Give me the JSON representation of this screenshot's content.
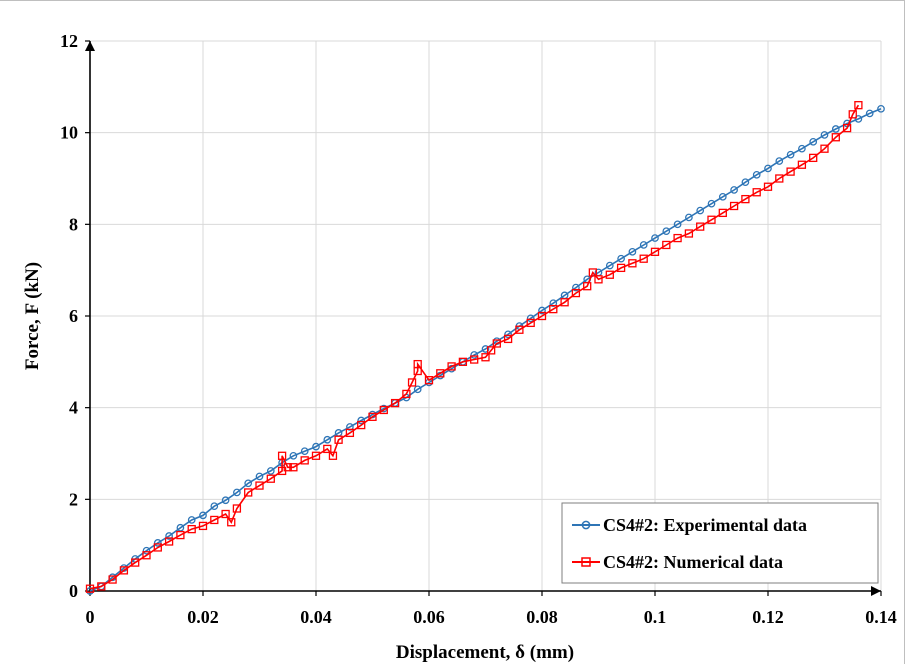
{
  "chart_data": {
    "type": "scatter",
    "xlabel": "Displacement, δ (mm)",
    "ylabel": "Force, F (kN)",
    "xlim": [
      0,
      0.14
    ],
    "ylim": [
      0,
      12
    ],
    "x_ticks": [
      "0",
      "0.02",
      "0.04",
      "0.06",
      "0.08",
      "0.1",
      "0.12",
      "0.14"
    ],
    "y_ticks": [
      "0",
      "2",
      "4",
      "6",
      "8",
      "10",
      "12"
    ],
    "grid": true,
    "legend_position": "bottom-right",
    "series": [
      {
        "name": "CS4#2: Experimental data",
        "color": "#2e75b6",
        "marker": "circle",
        "x": [
          0.0,
          0.002,
          0.004,
          0.006,
          0.008,
          0.01,
          0.012,
          0.014,
          0.016,
          0.018,
          0.02,
          0.022,
          0.024,
          0.026,
          0.028,
          0.03,
          0.032,
          0.034,
          0.036,
          0.038,
          0.04,
          0.042,
          0.044,
          0.046,
          0.048,
          0.05,
          0.052,
          0.054,
          0.056,
          0.058,
          0.06,
          0.062,
          0.064,
          0.066,
          0.068,
          0.07,
          0.072,
          0.074,
          0.076,
          0.078,
          0.08,
          0.082,
          0.084,
          0.086,
          0.088,
          0.09,
          0.092,
          0.094,
          0.096,
          0.098,
          0.1,
          0.102,
          0.104,
          0.106,
          0.108,
          0.11,
          0.112,
          0.114,
          0.116,
          0.118,
          0.12,
          0.122,
          0.124,
          0.126,
          0.128,
          0.13,
          0.132,
          0.134,
          0.136,
          0.138,
          0.14
        ],
        "y": [
          0.0,
          0.1,
          0.3,
          0.5,
          0.7,
          0.88,
          1.05,
          1.2,
          1.38,
          1.55,
          1.65,
          1.85,
          1.98,
          2.15,
          2.35,
          2.5,
          2.62,
          2.8,
          2.95,
          3.05,
          3.15,
          3.3,
          3.45,
          3.58,
          3.72,
          3.85,
          3.98,
          4.1,
          4.22,
          4.4,
          4.55,
          4.7,
          4.85,
          5.0,
          5.15,
          5.28,
          5.45,
          5.6,
          5.78,
          5.95,
          6.12,
          6.28,
          6.45,
          6.62,
          6.8,
          6.95,
          7.1,
          7.25,
          7.4,
          7.55,
          7.7,
          7.85,
          8.0,
          8.15,
          8.3,
          8.45,
          8.6,
          8.75,
          8.92,
          9.08,
          9.22,
          9.38,
          9.52,
          9.65,
          9.8,
          9.95,
          10.08,
          10.2,
          10.3,
          10.42,
          10.52
        ]
      },
      {
        "name": "CS4#2: Numerical data",
        "color": "#ff0000",
        "marker": "square",
        "x": [
          0.0,
          0.002,
          0.004,
          0.006,
          0.008,
          0.01,
          0.012,
          0.014,
          0.016,
          0.018,
          0.02,
          0.022,
          0.024,
          0.025,
          0.026,
          0.028,
          0.03,
          0.032,
          0.034,
          0.034,
          0.035,
          0.036,
          0.038,
          0.04,
          0.042,
          0.043,
          0.044,
          0.046,
          0.048,
          0.05,
          0.052,
          0.054,
          0.056,
          0.057,
          0.058,
          0.058,
          0.06,
          0.062,
          0.064,
          0.066,
          0.068,
          0.07,
          0.071,
          0.072,
          0.074,
          0.076,
          0.078,
          0.08,
          0.082,
          0.084,
          0.086,
          0.088,
          0.089,
          0.09,
          0.092,
          0.094,
          0.096,
          0.098,
          0.1,
          0.102,
          0.104,
          0.106,
          0.108,
          0.11,
          0.112,
          0.114,
          0.116,
          0.118,
          0.12,
          0.122,
          0.124,
          0.126,
          0.128,
          0.13,
          0.132,
          0.134,
          0.135,
          0.136
        ],
        "y": [
          0.05,
          0.1,
          0.25,
          0.45,
          0.62,
          0.78,
          0.95,
          1.08,
          1.22,
          1.35,
          1.42,
          1.55,
          1.68,
          1.5,
          1.8,
          2.15,
          2.3,
          2.45,
          2.62,
          2.95,
          2.7,
          2.7,
          2.85,
          2.95,
          3.1,
          2.95,
          3.3,
          3.45,
          3.62,
          3.8,
          3.95,
          4.1,
          4.3,
          4.55,
          4.8,
          4.95,
          4.6,
          4.75,
          4.9,
          5.0,
          5.05,
          5.1,
          5.25,
          5.4,
          5.5,
          5.7,
          5.85,
          6.0,
          6.15,
          6.3,
          6.5,
          6.65,
          6.95,
          6.8,
          6.9,
          7.05,
          7.15,
          7.25,
          7.4,
          7.55,
          7.7,
          7.8,
          7.95,
          8.1,
          8.25,
          8.4,
          8.55,
          8.7,
          8.82,
          9.0,
          9.15,
          9.3,
          9.45,
          9.65,
          9.9,
          10.1,
          10.4,
          10.6
        ]
      }
    ]
  }
}
